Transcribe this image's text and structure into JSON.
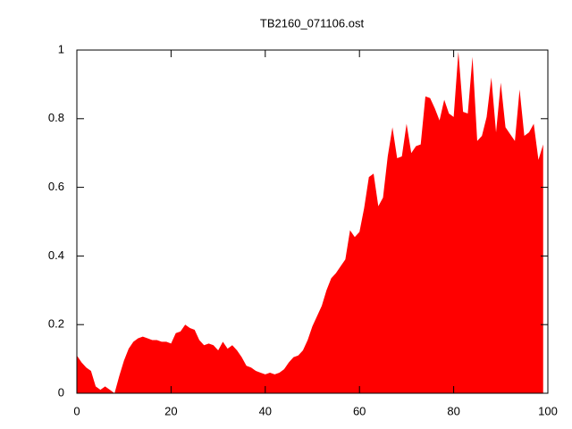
{
  "chart_data": {
    "type": "area",
    "title": "TB2160_071106.ost",
    "color": "#ff0000",
    "x": [
      0,
      1,
      2,
      3,
      4,
      5,
      6,
      7,
      8,
      9,
      10,
      11,
      12,
      13,
      14,
      15,
      16,
      17,
      18,
      19,
      20,
      21,
      22,
      23,
      24,
      25,
      26,
      27,
      28,
      29,
      30,
      31,
      32,
      33,
      34,
      35,
      36,
      37,
      38,
      39,
      40,
      41,
      42,
      43,
      44,
      45,
      46,
      47,
      48,
      49,
      50,
      51,
      52,
      53,
      54,
      55,
      56,
      57,
      58,
      59,
      60,
      61,
      62,
      63,
      64,
      65,
      66,
      67,
      68,
      69,
      70,
      71,
      72,
      73,
      74,
      75,
      76,
      77,
      78,
      79,
      80,
      81,
      82,
      83,
      84,
      85,
      86,
      87,
      88,
      89,
      90,
      91,
      92,
      93,
      94,
      95,
      96,
      97,
      98,
      99
    ],
    "values": [
      0.11,
      0.09,
      0.075,
      0.065,
      0.02,
      0.01,
      0.02,
      0.01,
      0.0,
      0.05,
      0.095,
      0.13,
      0.15,
      0.16,
      0.165,
      0.16,
      0.155,
      0.155,
      0.15,
      0.15,
      0.145,
      0.175,
      0.18,
      0.2,
      0.19,
      0.185,
      0.155,
      0.14,
      0.145,
      0.14,
      0.125,
      0.15,
      0.13,
      0.14,
      0.125,
      0.105,
      0.08,
      0.075,
      0.065,
      0.06,
      0.055,
      0.06,
      0.055,
      0.06,
      0.07,
      0.09,
      0.105,
      0.11,
      0.125,
      0.155,
      0.195,
      0.225,
      0.255,
      0.3,
      0.335,
      0.35,
      0.37,
      0.39,
      0.475,
      0.455,
      0.47,
      0.54,
      0.63,
      0.64,
      0.545,
      0.57,
      0.69,
      0.775,
      0.685,
      0.69,
      0.785,
      0.7,
      0.72,
      0.725,
      0.865,
      0.86,
      0.83,
      0.795,
      0.855,
      0.815,
      0.805,
      0.995,
      0.82,
      0.815,
      0.98,
      0.735,
      0.75,
      0.805,
      0.92,
      0.76,
      0.905,
      0.775,
      0.755,
      0.735,
      0.885,
      0.75,
      0.76,
      0.785,
      0.68,
      0.725
    ],
    "xlim": [
      0,
      100
    ],
    "xticks": [
      0,
      20,
      40,
      60,
      80,
      100
    ],
    "ylim": [
      0,
      1
    ],
    "yticks": [
      0,
      0.2,
      0.4,
      0.6,
      0.8,
      1
    ]
  }
}
